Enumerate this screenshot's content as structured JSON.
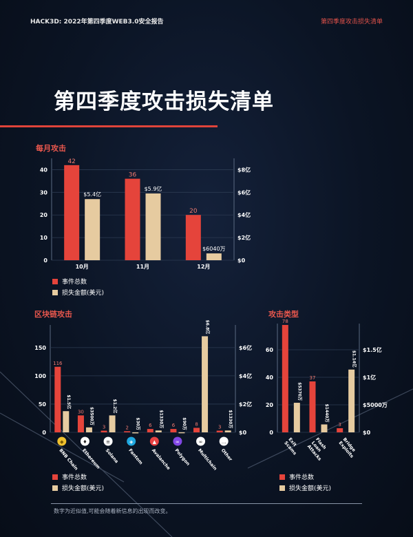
{
  "header": {
    "left": "HACK3D: 2022年第四季度WEB3.0安全报告",
    "right": "第四季度攻击损失清单"
  },
  "title": "第四季度攻击损失清单",
  "colors": {
    "count": "#e5443b",
    "loss": "#e6cba0",
    "accent": "#e0443a"
  },
  "legend": {
    "count": "事件总数",
    "loss": "损失金额(美元)"
  },
  "footer": "数字为近似值,可能会随着新信息的出现而改变。",
  "chart_data": [
    {
      "type": "bar",
      "title": "每月攻击",
      "categories": [
        "10月",
        "11月",
        "12月"
      ],
      "series": [
        {
          "name": "事件总数",
          "axis": "left",
          "values": [
            42,
            36,
            20
          ],
          "labels": [
            "42",
            "36",
            "20"
          ]
        },
        {
          "name": "损失金额(美元)",
          "axis": "right",
          "unit": "亿美元",
          "values": [
            5.4,
            5.9,
            0.604
          ],
          "labels": [
            "$5.4亿",
            "$5.9亿",
            "$6040万"
          ]
        }
      ],
      "left_ticks": [
        "0",
        "10",
        "20",
        "30",
        "40"
      ],
      "right_ticks": [
        "$0",
        "$2亿",
        "$4亿",
        "$6亿",
        "$8亿"
      ],
      "ylim_left": [
        0,
        45
      ],
      "ylim_right": [
        0,
        9
      ],
      "grid": true,
      "legend": "bottom-left"
    },
    {
      "type": "bar",
      "title": "区块链攻击",
      "categories": [
        "BNB Chain",
        "Ethereum",
        "Solana",
        "Fantom",
        "Avalanche",
        "Polygon",
        "Multichain",
        "Other"
      ],
      "icons": [
        "bnb-icon",
        "ethereum-icon",
        "solana-icon",
        "fantom-icon",
        "avalanche-icon",
        "polygon-icon",
        "multichain-icon",
        "other-icon"
      ],
      "series": [
        {
          "name": "事件总数",
          "axis": "left",
          "values": [
            116,
            30,
            3,
            2,
            6,
            6,
            8,
            3
          ],
          "labels": [
            "116",
            "30",
            "3",
            "2",
            "6",
            "6",
            "8",
            "3"
          ]
        },
        {
          "name": "损失金额(美元)",
          "axis": "right",
          "unit": "亿美元",
          "values": [
            1.5,
            0.35,
            1.2,
            0.003,
            0.133,
            0.009,
            6.8,
            0.133
          ],
          "labels": [
            "$1.5亿",
            "$3500万",
            "$1.2亿",
            "$30万",
            "$1330万",
            "$90万",
            "$6.8亿",
            "$1330万"
          ]
        }
      ],
      "left_ticks": [
        "0",
        "50",
        "100",
        "150"
      ],
      "right_ticks": [
        "$0",
        "$2亿",
        "$4亿",
        "$6亿"
      ],
      "ylim_left": [
        0,
        190
      ],
      "ylim_right": [
        0,
        7.6
      ],
      "grid": true,
      "legend": "bottom-left"
    },
    {
      "type": "bar",
      "title": "攻击类型",
      "categories": [
        "Exit Scams",
        "Flash Loan Attacks",
        "Bridge Exploits"
      ],
      "series": [
        {
          "name": "事件总数",
          "axis": "left",
          "values": [
            78,
            37,
            3
          ],
          "labels": [
            "78",
            "37",
            "3"
          ]
        },
        {
          "name": "损失金额(美元)",
          "axis": "right",
          "unit": "亿美元",
          "values": [
            0.537,
            0.144,
            1.14
          ],
          "labels": [
            "$5370万",
            "$1440万",
            "$1.14亿"
          ]
        }
      ],
      "left_ticks": [
        "0",
        "20",
        "40",
        "60"
      ],
      "right_ticks": [
        "$0",
        "$5000万",
        "$1亿",
        "$1.5亿"
      ],
      "ylim_left": [
        0,
        79
      ],
      "ylim_right": [
        0,
        1.975
      ],
      "grid": true,
      "legend": "bottom-left"
    }
  ]
}
